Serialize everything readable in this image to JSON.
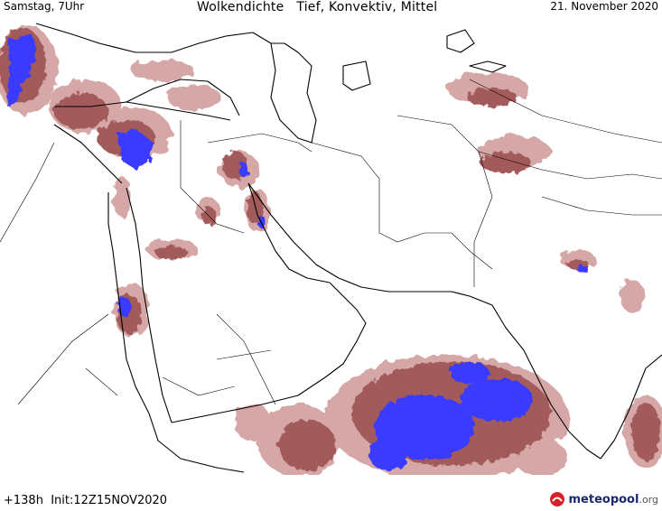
{
  "header": {
    "time_label": "Samstag, 7Uhr",
    "title": "Wolkendichte   Tief, Konvektiv, Mittel",
    "date_label": "21. November 2020"
  },
  "footer": {
    "forecast_label": "+138h  Init:12Z15NOV2020",
    "brand_name": "meteopool",
    "brand_tld": ".org"
  },
  "colors": {
    "cloud_moderate": "#a35a5a",
    "cloud_light": "#d4a3a3",
    "cloud_dense": "#3a3aff",
    "coastline": "#000000",
    "borders": "#000000",
    "brand_red": "#d8222a",
    "brand_blue": "#1a2a6c"
  }
}
